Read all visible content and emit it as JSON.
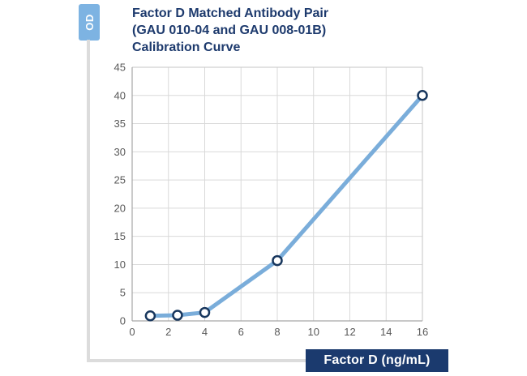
{
  "title": {
    "line1": "Factor D Matched Antibody Pair",
    "line2": "(GAU 010-04 and GAU 008-01B)",
    "line3": "Calibration Curve"
  },
  "y_axis_badge": "OD",
  "x_axis_label": "Factor D (ng/mL)",
  "colors": {
    "navy": "#1d3a6d",
    "line_blue": "#7aadda",
    "badge_blue": "#7db3e2",
    "marker_stroke": "#17365d",
    "grid": "#d9d9d9",
    "axis_line": "#a6a6a6",
    "border": "#c6c6c6",
    "tick_text": "#595959",
    "axis_bar_gray": "#dcdcdc"
  },
  "chart_data": {
    "type": "line",
    "title": "Factor D Matched Antibody Pair (GAU 010-04 and GAU 008-01B) Calibration Curve",
    "xlabel": "Factor D (ng/mL)",
    "ylabel": "OD",
    "series": [
      {
        "name": "Calibration curve",
        "x": [
          1,
          2.5,
          4,
          8,
          16
        ],
        "values": [
          0.9,
          1.0,
          1.5,
          10.7,
          40.0
        ]
      }
    ],
    "xlim": [
      0,
      16
    ],
    "ylim": [
      0,
      45
    ],
    "x_ticks": [
      0,
      2,
      4,
      6,
      8,
      10,
      12,
      14,
      16
    ],
    "y_ticks": [
      0,
      5,
      10,
      15,
      20,
      25,
      30,
      35,
      40,
      45
    ],
    "grid": true,
    "legend": false,
    "marker": "open-circle"
  }
}
